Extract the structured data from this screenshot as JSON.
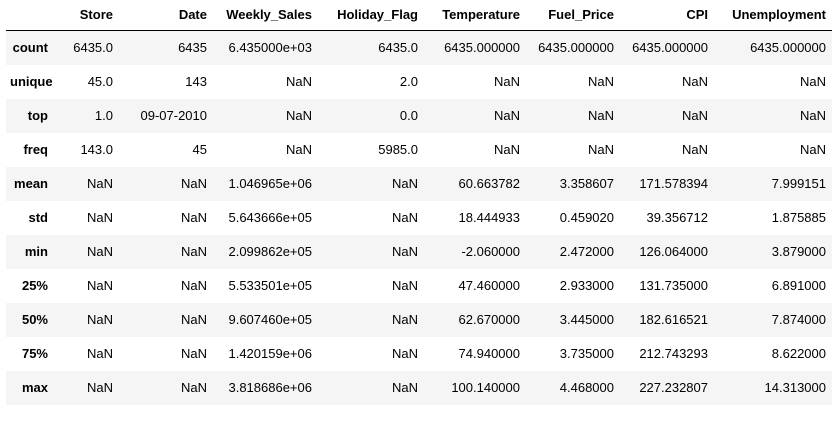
{
  "table": {
    "corner": "",
    "columns": [
      "Store",
      "Date",
      "Weekly_Sales",
      "Holiday_Flag",
      "Temperature",
      "Fuel_Price",
      "CPI",
      "Unemployment"
    ],
    "rows": [
      {
        "index": "count",
        "cells": [
          "6435.0",
          "6435",
          "6.435000e+03",
          "6435.0",
          "6435.000000",
          "6435.000000",
          "6435.000000",
          "6435.000000"
        ]
      },
      {
        "index": "unique",
        "cells": [
          "45.0",
          "143",
          "NaN",
          "2.0",
          "NaN",
          "NaN",
          "NaN",
          "NaN"
        ]
      },
      {
        "index": "top",
        "cells": [
          "1.0",
          "09-07-2010",
          "NaN",
          "0.0",
          "NaN",
          "NaN",
          "NaN",
          "NaN"
        ]
      },
      {
        "index": "freq",
        "cells": [
          "143.0",
          "45",
          "NaN",
          "5985.0",
          "NaN",
          "NaN",
          "NaN",
          "NaN"
        ]
      },
      {
        "index": "mean",
        "cells": [
          "NaN",
          "NaN",
          "1.046965e+06",
          "NaN",
          "60.663782",
          "3.358607",
          "171.578394",
          "7.999151"
        ]
      },
      {
        "index": "std",
        "cells": [
          "NaN",
          "NaN",
          "5.643666e+05",
          "NaN",
          "18.444933",
          "0.459020",
          "39.356712",
          "1.875885"
        ]
      },
      {
        "index": "min",
        "cells": [
          "NaN",
          "NaN",
          "2.099862e+05",
          "NaN",
          "-2.060000",
          "2.472000",
          "126.064000",
          "3.879000"
        ]
      },
      {
        "index": "25%",
        "cells": [
          "NaN",
          "NaN",
          "5.533501e+05",
          "NaN",
          "47.460000",
          "2.933000",
          "131.735000",
          "6.891000"
        ]
      },
      {
        "index": "50%",
        "cells": [
          "NaN",
          "NaN",
          "9.607460e+05",
          "NaN",
          "62.670000",
          "3.445000",
          "182.616521",
          "7.874000"
        ]
      },
      {
        "index": "75%",
        "cells": [
          "NaN",
          "NaN",
          "1.420159e+06",
          "NaN",
          "74.940000",
          "3.735000",
          "212.743293",
          "8.622000"
        ]
      },
      {
        "index": "max",
        "cells": [
          "NaN",
          "NaN",
          "3.818686e+06",
          "NaN",
          "100.140000",
          "4.468000",
          "227.232807",
          "14.313000"
        ]
      }
    ]
  }
}
